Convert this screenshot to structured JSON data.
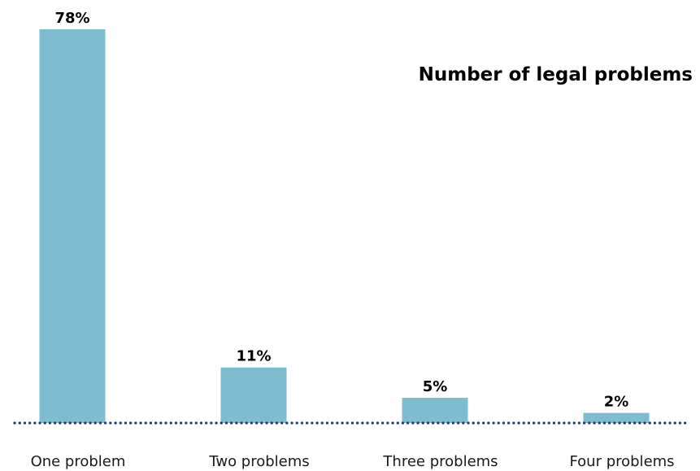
{
  "chart_data": {
    "type": "bar",
    "title": "Number of legal problems",
    "categories": [
      "One problem",
      "Two problems",
      "Three problems",
      "Four problems"
    ],
    "values": [
      78,
      11,
      5,
      2
    ],
    "value_labels": [
      "78%",
      "11%",
      "5%",
      "2%"
    ],
    "unit": "%",
    "xlabel": "",
    "ylabel": "",
    "ylim": [
      0,
      78
    ],
    "grid": false,
    "legend": "none",
    "colors": {
      "bar": "#7ebdcf",
      "baseline": "#1f3d6b"
    }
  }
}
